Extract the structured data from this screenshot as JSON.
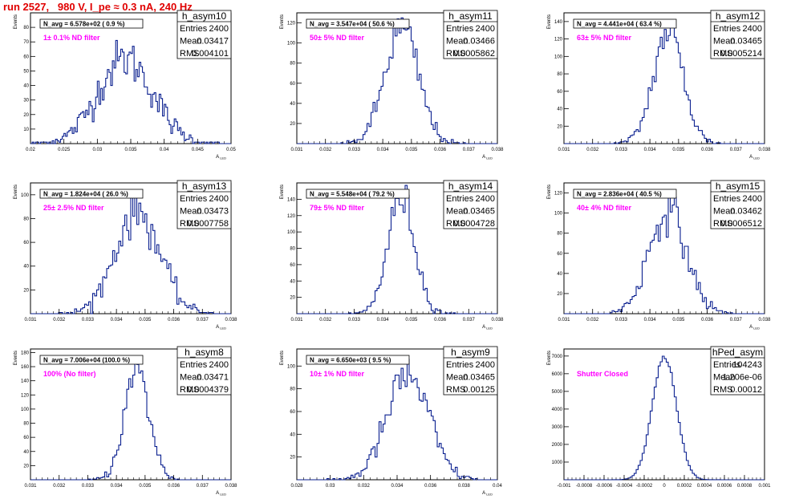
{
  "header": {
    "title": "run 2527,   980 V, I_pe ≈ 0.3 nA, 240 Hz",
    "title_color": "#e00000"
  },
  "style": {
    "histogram_color": "#0a1f8f",
    "annotation_color": "#ff00ff",
    "axis_color": "#000000",
    "frame_color": "#000000"
  },
  "chart_data": [
    {
      "type": "histogram",
      "title": "h_asym10",
      "stats": {
        "Entries": "2400",
        "Mean": "0.03417",
        "RMS": "0.004101"
      },
      "navg_label": "N_avg = 6.578e+02 (  0.9 %)",
      "annotation": "1± 0.1% ND filter",
      "xlabel": "A",
      "xlabel_sub": "LED",
      "ylabel": "Events",
      "xlim": [
        0.02,
        0.05
      ],
      "ylim": [
        0,
        90
      ],
      "xticks": [
        "0.02",
        "0.025",
        "0.03",
        "0.035",
        "0.04",
        "0.045",
        "0.05"
      ],
      "yticks": [
        "10",
        "20",
        "30",
        "40",
        "50",
        "60",
        "70",
        "80"
      ],
      "ytick_values": [
        10,
        20,
        30,
        40,
        50,
        60,
        70,
        80
      ],
      "nbins": 120,
      "entries": 2400,
      "mean": 0.03417,
      "rms": 0.004101
    },
    {
      "type": "histogram",
      "title": "h_asym11",
      "stats": {
        "Entries": "2400",
        "Mean": "0.03466",
        "RMS": "0.0005862"
      },
      "navg_label": "N_avg = 3.547e+04 ( 50.6 %)",
      "annotation": "50± 5% ND filter",
      "xlabel": "A",
      "xlabel_sub": "LED",
      "ylabel": "Events",
      "xlim": [
        0.031,
        0.038
      ],
      "ylim": [
        0,
        130
      ],
      "xticks": [
        "0.031",
        "0.032",
        "0.033",
        "0.034",
        "0.035",
        "0.036",
        "0.037",
        "0.038"
      ],
      "yticks": [
        "20",
        "40",
        "60",
        "80",
        "100",
        "120"
      ],
      "ytick_values": [
        20,
        40,
        60,
        80,
        100,
        120
      ],
      "nbins": 100,
      "entries": 2400,
      "mean": 0.03466,
      "rms": 0.0005862
    },
    {
      "type": "histogram",
      "title": "h_asym12",
      "stats": {
        "Entries": "2400",
        "Mean": "0.03465",
        "RMS": "0.0005214"
      },
      "navg_label": "N_avg = 4.441e+04 ( 63.4 %)",
      "annotation": "63± 5% ND filter",
      "xlabel": "A",
      "xlabel_sub": "LED",
      "ylabel": "Events",
      "xlim": [
        0.031,
        0.038
      ],
      "ylim": [
        0,
        150
      ],
      "xticks": [
        "0.031",
        "0.032",
        "0.033",
        "0.034",
        "0.035",
        "0.036",
        "0.037",
        "0.038"
      ],
      "yticks": [
        "20",
        "40",
        "60",
        "80",
        "100",
        "120",
        "140"
      ],
      "ytick_values": [
        20,
        40,
        60,
        80,
        100,
        120,
        140
      ],
      "nbins": 100,
      "entries": 2400,
      "mean": 0.03465,
      "rms": 0.0005214
    },
    {
      "type": "histogram",
      "title": "h_asym13",
      "stats": {
        "Entries": "2400",
        "Mean": "0.03473",
        "RMS": "0.0007758"
      },
      "navg_label": "N_avg = 1.824e+04 ( 26.0 %)",
      "annotation": "25± 2.5% ND filter",
      "xlabel": "A",
      "xlabel_sub": "LED",
      "ylabel": "Events",
      "xlim": [
        0.031,
        0.038
      ],
      "ylim": [
        0,
        110
      ],
      "xticks": [
        "0.031",
        "0.032",
        "0.033",
        "0.034",
        "0.035",
        "0.036",
        "0.037",
        "0.038"
      ],
      "yticks": [
        "20",
        "40",
        "60",
        "80",
        "100"
      ],
      "ytick_values": [
        20,
        40,
        60,
        80,
        100
      ],
      "nbins": 100,
      "entries": 2400,
      "mean": 0.03473,
      "rms": 0.0007758
    },
    {
      "type": "histogram",
      "title": "h_asym14",
      "stats": {
        "Entries": "2400",
        "Mean": "0.03465",
        "RMS": "0.0004728"
      },
      "navg_label": "N_avg = 5.548e+04 ( 79.2 %)",
      "annotation": "79± 5% ND filter",
      "xlabel": "A",
      "xlabel_sub": "LED",
      "ylabel": "Events",
      "xlim": [
        0.031,
        0.038
      ],
      "ylim": [
        0,
        160
      ],
      "xticks": [
        "0.031",
        "0.032",
        "0.033",
        "0.034",
        "0.035",
        "0.036",
        "0.037",
        "0.038"
      ],
      "yticks": [
        "20",
        "40",
        "60",
        "80",
        "100",
        "120",
        "140"
      ],
      "ytick_values": [
        20,
        40,
        60,
        80,
        100,
        120,
        140
      ],
      "nbins": 100,
      "entries": 2400,
      "mean": 0.03465,
      "rms": 0.0004728
    },
    {
      "type": "histogram",
      "title": "h_asym15",
      "stats": {
        "Entries": "2400",
        "Mean": "0.03462",
        "RMS": "0.0006512"
      },
      "navg_label": "N_avg = 2.836e+04 ( 40.5 %)",
      "annotation": "40± 4% ND filter",
      "xlabel": "A",
      "xlabel_sub": "LED",
      "ylabel": "Events",
      "xlim": [
        0.031,
        0.038
      ],
      "ylim": [
        0,
        130
      ],
      "xticks": [
        "0.031",
        "0.032",
        "0.033",
        "0.034",
        "0.035",
        "0.036",
        "0.037",
        "0.038"
      ],
      "yticks": [
        "20",
        "40",
        "60",
        "80",
        "100",
        "120"
      ],
      "ytick_values": [
        20,
        40,
        60,
        80,
        100,
        120
      ],
      "nbins": 100,
      "entries": 2400,
      "mean": 0.03462,
      "rms": 0.0006512
    },
    {
      "type": "histogram",
      "title": "h_asym8",
      "stats": {
        "Entries": "2400",
        "Mean": "0.03471",
        "RMS": "0.0004379"
      },
      "navg_label": "N_avg = 7.006e+04 (100.0 %)",
      "annotation": "100% (No filter)",
      "xlabel": "A",
      "xlabel_sub": "LED",
      "ylabel": "Events",
      "xlim": [
        0.031,
        0.038
      ],
      "ylim": [
        0,
        185
      ],
      "xticks": [
        "0.031",
        "0.032",
        "0.033",
        "0.034",
        "0.035",
        "0.036",
        "0.037",
        "0.038"
      ],
      "yticks": [
        "20",
        "40",
        "60",
        "80",
        "100",
        "120",
        "140",
        "160",
        "180"
      ],
      "ytick_values": [
        20,
        40,
        60,
        80,
        100,
        120,
        140,
        160,
        180
      ],
      "nbins": 100,
      "entries": 2400,
      "mean": 0.03471,
      "rms": 0.0004379
    },
    {
      "type": "histogram",
      "title": "h_asym9",
      "stats": {
        "Entries": "2400",
        "Mean": "0.03465",
        "RMS": "0.00125"
      },
      "navg_label": "N_avg = 6.650e+03 (  9.5 %)",
      "annotation": "10± 1% ND filter",
      "xlabel": "A",
      "xlabel_sub": "LED",
      "ylabel": "Events",
      "xlim": [
        0.028,
        0.04
      ],
      "ylim": [
        0,
        115
      ],
      "xticks": [
        "0.028",
        "0.03",
        "0.032",
        "0.034",
        "0.036",
        "0.038",
        "0.04"
      ],
      "yticks": [
        "20",
        "40",
        "60",
        "80",
        "100"
      ],
      "ytick_values": [
        20,
        40,
        60,
        80,
        100
      ],
      "nbins": 100,
      "entries": 2400,
      "mean": 0.03465,
      "rms": 0.00125
    },
    {
      "type": "histogram",
      "title": "hPed_asym",
      "stats": {
        "Entries": "104243",
        "Mean": "1.206e-06",
        "RMS": "0.00012"
      },
      "navg_label": "",
      "annotation": "Shutter Closed",
      "xlabel": "",
      "xlabel_sub": "",
      "ylabel": "Events",
      "xlim": [
        -0.001,
        0.001
      ],
      "ylim": [
        0,
        7400
      ],
      "xticks": [
        "-0.001",
        "-0.0008",
        "-0.0006",
        "-0.0004",
        "-0.0002",
        "0",
        "0.0002",
        "0.0004",
        "0.0006",
        "0.0008",
        "0.001"
      ],
      "yticks": [
        "1000",
        "2000",
        "3000",
        "4000",
        "5000",
        "6000",
        "7000"
      ],
      "ytick_values": [
        1000,
        2000,
        3000,
        4000,
        5000,
        6000,
        7000
      ],
      "nbins": 100,
      "entries": 104243,
      "mean": 1.206e-06,
      "rms": 0.00012
    }
  ]
}
